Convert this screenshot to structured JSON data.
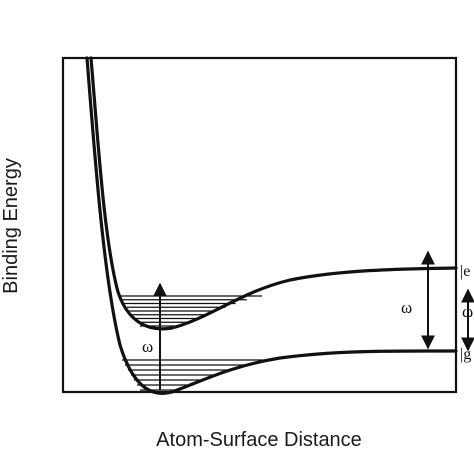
{
  "diagram": {
    "xlabel": "Atom-Surface Distance",
    "ylabel": "Binding Energy",
    "left_transition_label": "ω",
    "right_transition_label": "ω",
    "far_right_label": "ω",
    "excited_state_label": "|e",
    "ground_state_label": "|g",
    "upper_bound_levels": 9,
    "lower_bound_levels": 7
  }
}
